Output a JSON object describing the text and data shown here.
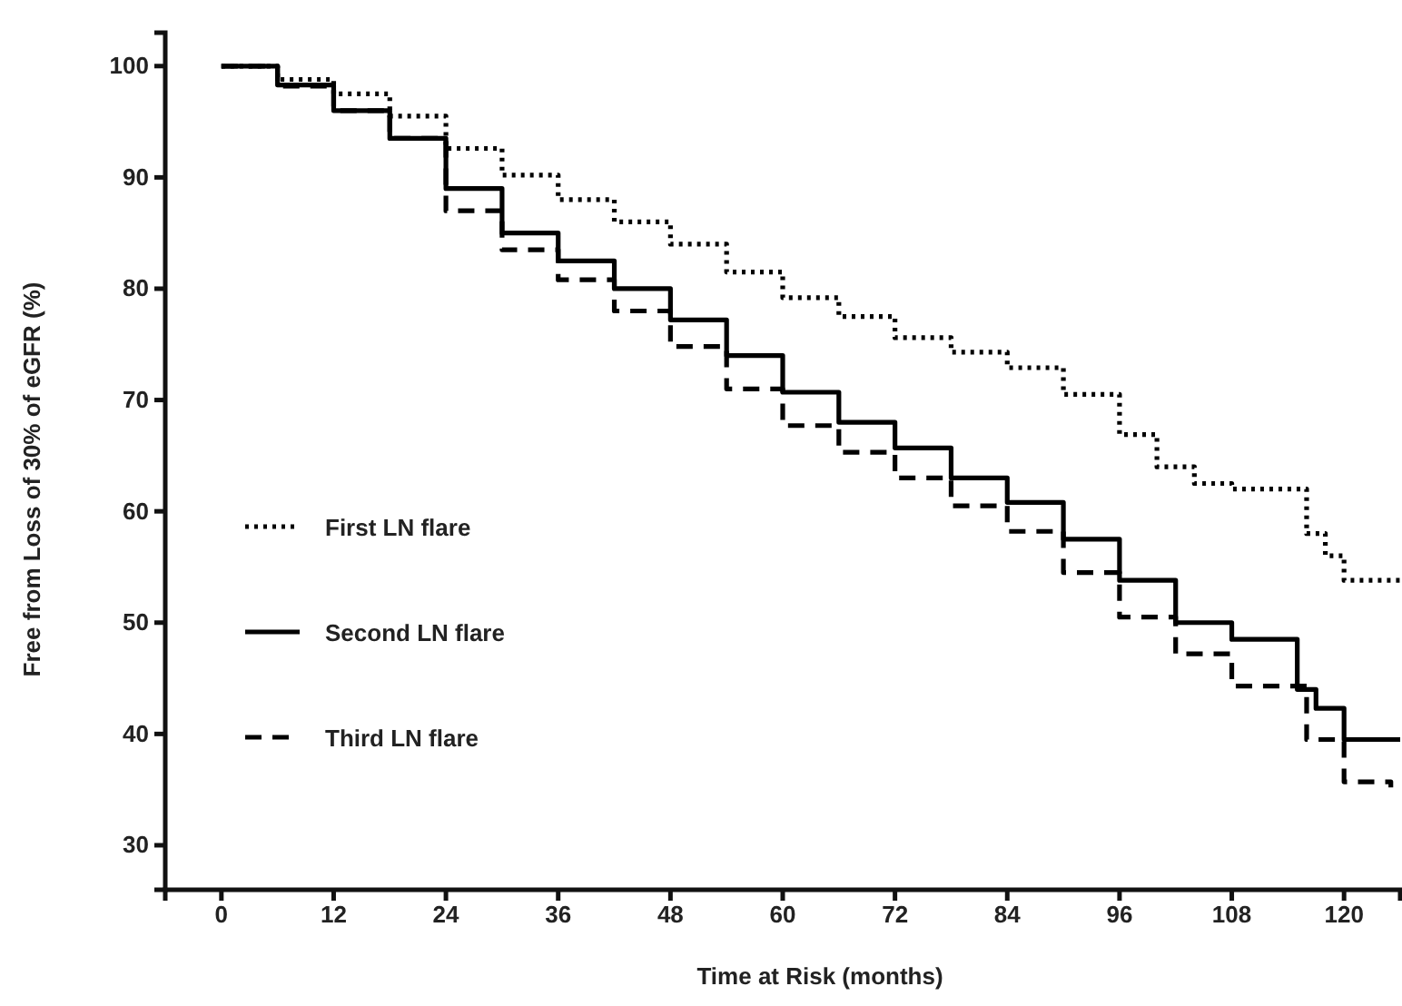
{
  "chart_data": {
    "type": "step",
    "xlabel": "Time at Risk (months)",
    "ylabel": "Free from Loss of 30% of eGFR (%)",
    "xlim": [
      -6,
      126
    ],
    "ylim": [
      26,
      103
    ],
    "xticks": [
      0,
      12,
      24,
      36,
      48,
      60,
      72,
      84,
      96,
      108,
      120
    ],
    "yticks": [
      30,
      40,
      50,
      60,
      70,
      80,
      90,
      100
    ],
    "grid": false,
    "legend": "bottom left",
    "marker": "none",
    "series": [
      {
        "name": "First LN flare",
        "color": "#000000",
        "line_style": "dotted",
        "x": [
          0,
          6,
          12,
          18,
          24,
          30,
          36,
          42,
          48,
          54,
          60,
          66,
          72,
          78,
          84,
          90,
          96,
          100,
          104,
          108,
          114,
          116,
          118,
          120,
          126
        ],
        "values": [
          100,
          98.8,
          97.5,
          95.5,
          92.6,
          90.2,
          88,
          86,
          84,
          81.5,
          79.2,
          77.5,
          75.6,
          74.3,
          72.9,
          70.5,
          66.9,
          64,
          62.5,
          62,
          62,
          58,
          56,
          53.8,
          53.8
        ]
      },
      {
        "name": "Second LN flare",
        "color": "#000000",
        "line_style": "solid",
        "x": [
          0,
          6,
          12,
          18,
          24,
          30,
          36,
          42,
          48,
          54,
          60,
          66,
          72,
          78,
          84,
          90,
          96,
          102,
          108,
          114,
          115,
          117,
          120,
          126
        ],
        "values": [
          100,
          98.3,
          96,
          93.5,
          89,
          85,
          82.5,
          80,
          77.2,
          74,
          70.7,
          68,
          65.7,
          63,
          60.8,
          57.5,
          53.8,
          50,
          48.5,
          48.5,
          44,
          42.3,
          39.5,
          39.5
        ]
      },
      {
        "name": "Third LN flare",
        "color": "#000000",
        "line_style": "dashed",
        "x": [
          0,
          6,
          12,
          18,
          24,
          30,
          36,
          42,
          48,
          54,
          60,
          66,
          72,
          78,
          84,
          90,
          96,
          102,
          108,
          114,
          116,
          120,
          125
        ],
        "values": [
          100,
          98.2,
          96,
          93.5,
          87,
          83.5,
          80.8,
          78,
          74.8,
          71,
          67.7,
          65.3,
          63,
          60.5,
          58.2,
          54.5,
          50.5,
          47.2,
          44.3,
          44.3,
          39.5,
          35.7,
          35.2
        ]
      }
    ]
  }
}
